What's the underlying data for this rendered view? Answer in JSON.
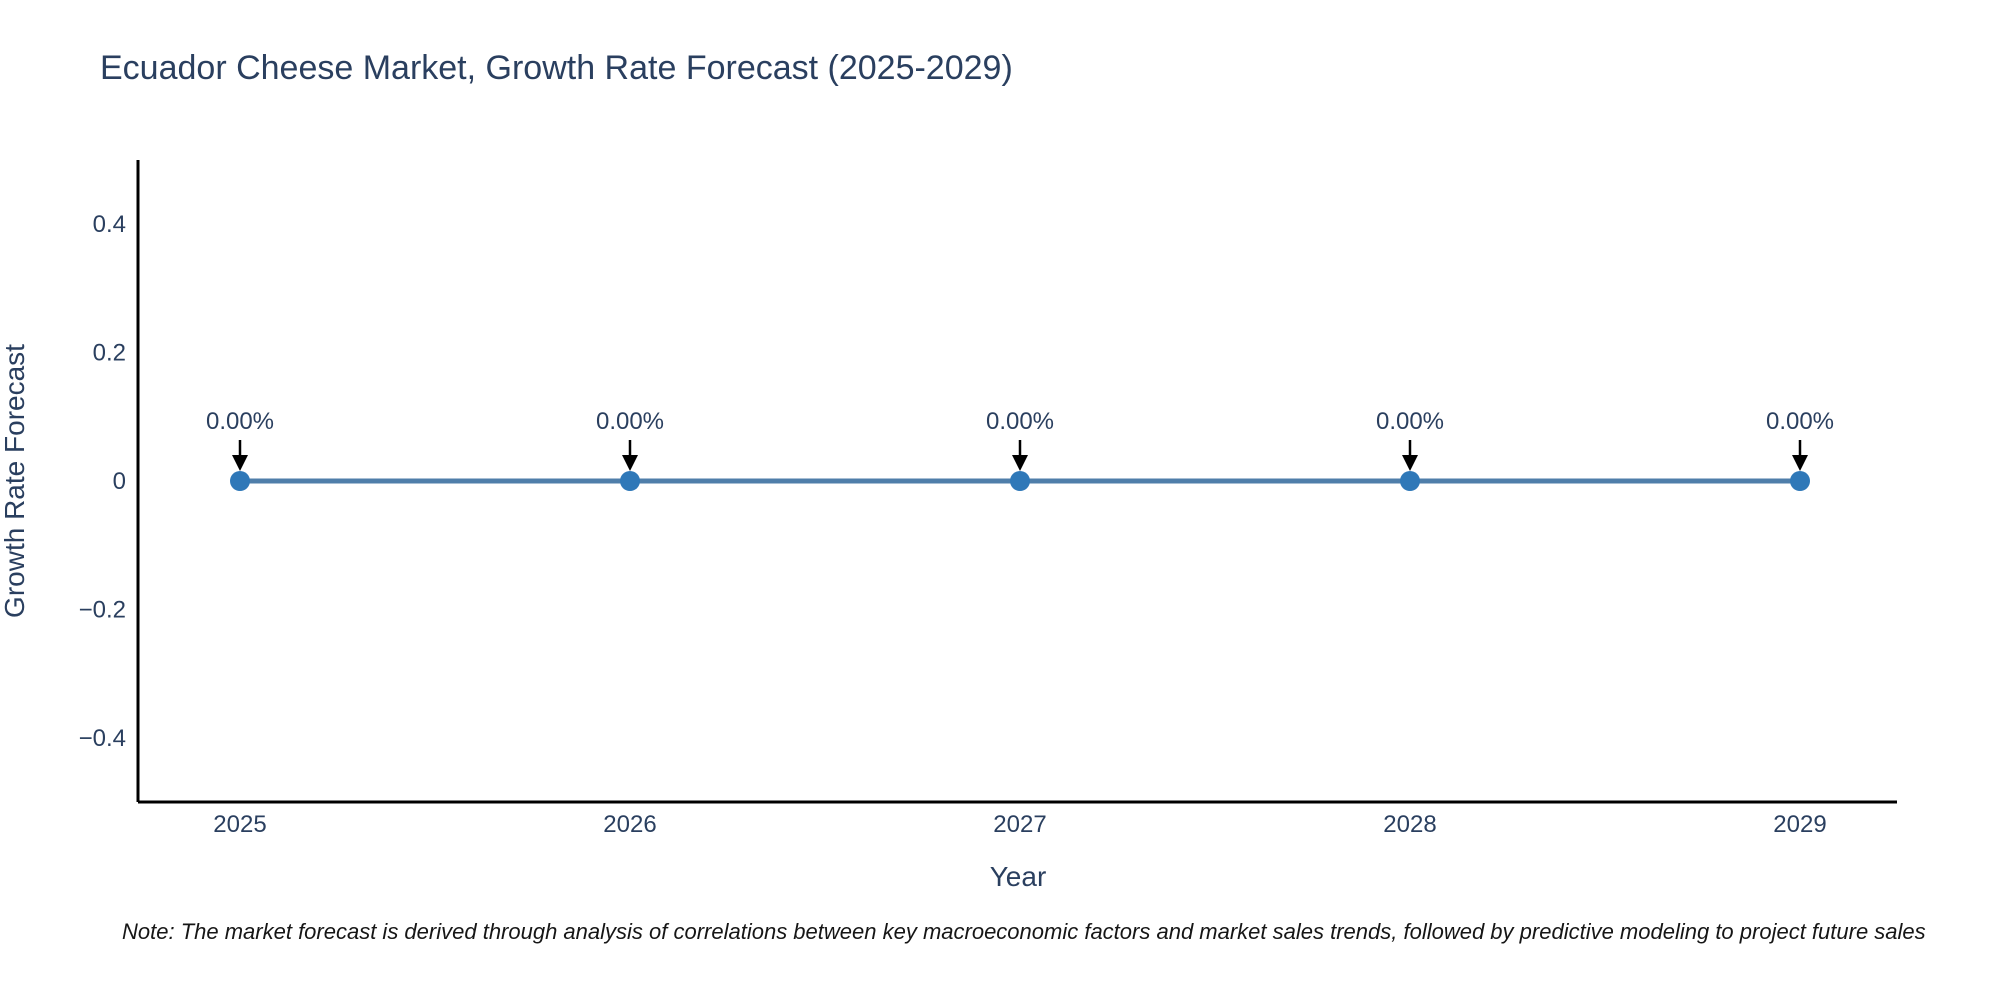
{
  "footnote": "Note: The market forecast is derived through analysis of correlations between key macroeconomic factors and market sales trends, followed by predictive modeling to project future sales",
  "chart_data": {
    "type": "line",
    "title": "Ecuador Cheese Market, Growth Rate Forecast (2025-2029)",
    "xlabel": "Year",
    "ylabel": "Growth Rate Forecast",
    "x": [
      2025,
      2026,
      2027,
      2028,
      2029
    ],
    "x_tick_labels": [
      "2025",
      "2026",
      "2027",
      "2028",
      "2029"
    ],
    "y": [
      0,
      0,
      0,
      0,
      0
    ],
    "point_labels": [
      "0.00%",
      "0.00%",
      "0.00%",
      "0.00%",
      "0.00%"
    ],
    "y_tick_values": [
      0.4,
      0.2,
      0,
      -0.2,
      -0.4
    ],
    "y_tick_labels": [
      "0.4",
      "0.2",
      "0",
      "−0.2",
      "−0.4"
    ],
    "ylim": [
      -0.5,
      0.5
    ],
    "grid": false,
    "legend": "none",
    "colors": {
      "line": "#4f7eaa",
      "marker": "#2f78b8",
      "axis": "#000000",
      "arrow": "#000000",
      "text": "#2a3f5f",
      "tick_text": "#3b4a5c"
    }
  }
}
